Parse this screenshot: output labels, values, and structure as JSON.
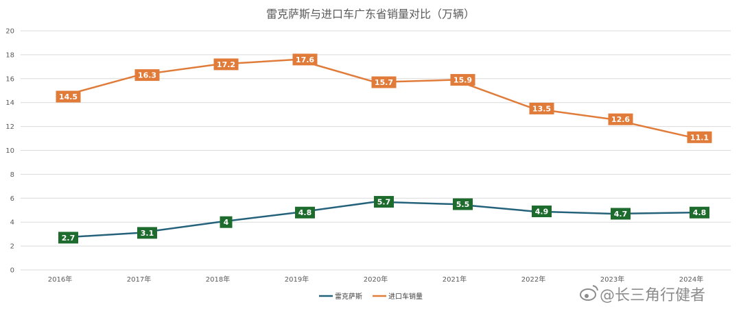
{
  "chart_data": {
    "type": "line",
    "title": "雷克萨斯与进口车广东省销量对比（万辆）",
    "categories": [
      "2016年",
      "2017年",
      "2018年",
      "2019年",
      "2020年",
      "2021年",
      "2022年",
      "2023年",
      "2024年"
    ],
    "series": [
      {
        "name": "雷克萨斯",
        "color": "#24617a",
        "label_bg": "#1e6b2e",
        "values": [
          2.7,
          3.1,
          4,
          4.8,
          5.7,
          5.5,
          4.9,
          4.7,
          4.8
        ]
      },
      {
        "name": "进口车销量",
        "color": "#e07b39",
        "label_bg": "#e07b39",
        "values": [
          14.5,
          16.3,
          17.2,
          17.6,
          15.7,
          15.9,
          13.5,
          12.6,
          11.1
        ]
      }
    ],
    "ylim": [
      0,
      20
    ],
    "yticks": [
      0,
      2,
      4,
      6,
      8,
      10,
      12,
      14,
      16,
      18,
      20
    ],
    "grid": true,
    "legend_position": "bottom"
  },
  "watermark": {
    "text": "@长三角行健者",
    "icon": "weibo-icon"
  }
}
